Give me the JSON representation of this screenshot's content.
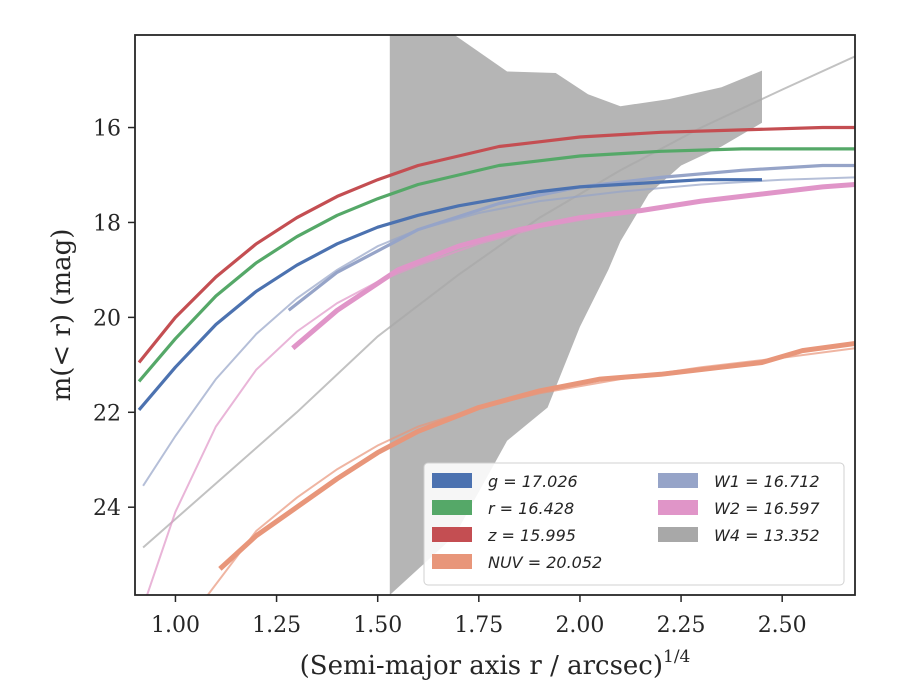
{
  "chart_data": {
    "type": "line",
    "xlabel": "(Semi-major axis r / arcsec)",
    "xlabel_sup": "1/4",
    "ylabel": "m(< r) (mag)",
    "xlim": [
      0.9,
      2.68
    ],
    "ylim": [
      25.85,
      14.05
    ],
    "x_ticks": [
      1.0,
      1.25,
      1.5,
      1.75,
      2.0,
      2.25,
      2.5
    ],
    "x_tick_labels": [
      "1.00",
      "1.25",
      "1.50",
      "1.75",
      "2.00",
      "2.25",
      "2.50"
    ],
    "y_ticks": [
      16,
      18,
      20,
      22,
      24
    ],
    "y_tick_labels": [
      "16",
      "18",
      "20",
      "22",
      "24"
    ],
    "legend_position": "lower-right",
    "legend": [
      {
        "label": "g = 17.026",
        "color": "#4c72b0"
      },
      {
        "label": "r = 16.428",
        "color": "#55a868"
      },
      {
        "label": "z = 15.995",
        "color": "#c44e52"
      },
      {
        "label": "NUV = 20.052",
        "color": "#e8967a"
      },
      {
        "label": "W1 = 16.712",
        "color": "#96a4c8"
      },
      {
        "label": "W2 = 16.597",
        "color": "#e095c8"
      },
      {
        "label": "W4 = 13.352",
        "color": "#a8a8a8"
      }
    ],
    "series": [
      {
        "name": "W4 = 13.352",
        "color": "#a8a8a8",
        "kind": "band_and_model",
        "band_x": [
          1.53,
          1.53,
          1.69,
          1.82,
          1.92,
          2.0,
          2.07,
          2.1,
          2.17,
          2.25,
          2.35,
          2.45,
          2.45,
          2.35,
          2.22,
          2.1,
          2.02,
          1.94,
          1.82,
          1.69,
          1.53
        ],
        "band_y_upper": [
          25.85,
          25.85,
          24.6,
          22.6,
          21.9,
          20.2,
          19.0,
          18.4,
          17.4,
          16.8,
          16.4,
          15.9,
          14.8,
          15.15,
          15.4,
          15.55,
          15.3,
          14.85,
          14.82,
          14.05,
          14.05
        ],
        "model_x": [
          0.92,
          1.1,
          1.3,
          1.5,
          1.7,
          1.9,
          2.1,
          2.3,
          2.5,
          2.68
        ],
        "model_y": [
          24.85,
          23.5,
          22.0,
          20.4,
          19.1,
          17.9,
          16.9,
          16.0,
          15.2,
          14.5
        ]
      },
      {
        "name": "W1 = 16.712",
        "color": "#96a4c8",
        "kind": "profile_and_model",
        "profile_x": [
          1.28,
          1.4,
          1.6,
          1.8,
          2.0,
          2.2,
          2.4,
          2.6,
          2.68
        ],
        "profile_y": [
          19.85,
          19.05,
          18.15,
          17.6,
          17.25,
          17.05,
          16.9,
          16.8,
          16.8
        ],
        "model_x": [
          0.92,
          1.0,
          1.1,
          1.2,
          1.3,
          1.4,
          1.5,
          1.6,
          1.75,
          1.9,
          2.1,
          2.3,
          2.5,
          2.68
        ],
        "model_y": [
          23.55,
          22.5,
          21.3,
          20.35,
          19.6,
          19.0,
          18.5,
          18.15,
          17.8,
          17.55,
          17.35,
          17.2,
          17.1,
          17.05
        ]
      },
      {
        "name": "W2 = 16.597",
        "color": "#e095c8",
        "kind": "profile_and_model",
        "profile_x": [
          1.29,
          1.4,
          1.55,
          1.7,
          1.85,
          2.0,
          2.15,
          2.3,
          2.45,
          2.6,
          2.68
        ],
        "profile_y": [
          20.65,
          19.85,
          19.0,
          18.5,
          18.15,
          17.9,
          17.75,
          17.55,
          17.4,
          17.25,
          17.2
        ],
        "model_x": [
          0.93,
          1.0,
          1.1,
          1.2,
          1.3,
          1.4,
          1.5,
          1.6,
          1.75,
          1.9,
          2.1,
          2.3,
          2.5,
          2.68
        ],
        "model_y": [
          25.85,
          24.1,
          22.3,
          21.1,
          20.3,
          19.7,
          19.25,
          18.9,
          18.45,
          18.1,
          17.8,
          17.55,
          17.35,
          17.2
        ]
      },
      {
        "name": "NUV = 20.052",
        "color": "#e8967a",
        "kind": "profile_and_model",
        "profile_x": [
          1.11,
          1.2,
          1.3,
          1.4,
          1.5,
          1.6,
          1.75,
          1.9,
          2.05,
          2.2,
          2.35,
          2.45,
          2.55,
          2.68
        ],
        "profile_y": [
          25.3,
          24.6,
          24.0,
          23.4,
          22.85,
          22.4,
          21.9,
          21.55,
          21.3,
          21.2,
          21.05,
          20.95,
          20.7,
          20.55
        ],
        "model_x": [
          1.08,
          1.2,
          1.3,
          1.4,
          1.5,
          1.6,
          1.75,
          1.9,
          2.1,
          2.3,
          2.5,
          2.68
        ],
        "model_y": [
          25.85,
          24.5,
          23.8,
          23.2,
          22.7,
          22.3,
          21.9,
          21.6,
          21.3,
          21.05,
          20.85,
          20.65
        ]
      },
      {
        "name": "g = 17.026",
        "color": "#4c72b0",
        "kind": "profile",
        "profile_x": [
          0.91,
          1.0,
          1.1,
          1.2,
          1.3,
          1.4,
          1.5,
          1.6,
          1.7,
          1.8,
          1.9,
          2.0,
          2.1,
          2.2,
          2.3,
          2.45
        ],
        "profile_y": [
          21.95,
          21.05,
          20.15,
          19.45,
          18.9,
          18.45,
          18.1,
          17.85,
          17.65,
          17.5,
          17.35,
          17.25,
          17.2,
          17.15,
          17.1,
          17.1
        ]
      },
      {
        "name": "r = 16.428",
        "color": "#55a868",
        "kind": "profile",
        "profile_x": [
          0.91,
          1.0,
          1.1,
          1.2,
          1.3,
          1.4,
          1.5,
          1.6,
          1.7,
          1.8,
          1.9,
          2.0,
          2.2,
          2.4,
          2.6,
          2.68
        ],
        "profile_y": [
          21.35,
          20.45,
          19.55,
          18.85,
          18.3,
          17.85,
          17.5,
          17.2,
          17.0,
          16.8,
          16.7,
          16.6,
          16.5,
          16.45,
          16.45,
          16.45
        ]
      },
      {
        "name": "z = 15.995",
        "color": "#c44e52",
        "kind": "profile",
        "profile_x": [
          0.91,
          1.0,
          1.1,
          1.2,
          1.3,
          1.4,
          1.5,
          1.6,
          1.7,
          1.8,
          1.9,
          2.0,
          2.2,
          2.4,
          2.6,
          2.68
        ],
        "profile_y": [
          20.95,
          20.0,
          19.15,
          18.45,
          17.9,
          17.45,
          17.1,
          16.8,
          16.6,
          16.4,
          16.3,
          16.2,
          16.1,
          16.05,
          16.0,
          16.0
        ]
      }
    ]
  }
}
